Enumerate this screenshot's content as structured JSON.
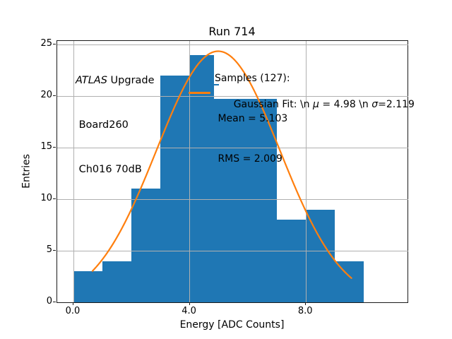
{
  "title": "Run 714",
  "xlabel": "Energy [ADC Counts]",
  "ylabel": "Entries",
  "annotations": {
    "detector": {
      "line1_italic": "ATLAS",
      "line1_rest": " Upgrade",
      "line2": " Board260",
      "line3": " Ch016 70dB"
    },
    "stats": {
      "line1": "Samples (127):",
      "line2": " Mean = 5.103",
      "line3": " RMS = 2.009"
    }
  },
  "legend": {
    "label_prefix": "Gaussian Fit: \\n ",
    "mu_symbol": "μ",
    "mu_value_text": " = 4.98 \\n ",
    "sigma_symbol": "σ",
    "sigma_value_text": "=2.119",
    "handle_color": "#ff7f0e"
  },
  "chart_data": {
    "type": "bar",
    "subtype": "histogram-with-gaussian-fit",
    "title": "Run 714",
    "xlabel": "Energy [ADC Counts]",
    "ylabel": "Entries",
    "bin_edges": [
      0,
      1,
      2,
      3,
      4,
      5,
      6,
      7,
      8,
      9,
      10
    ],
    "counts": [
      3,
      4,
      11,
      22,
      24,
      21,
      21,
      8,
      9,
      4
    ],
    "total_samples": 127,
    "mean": 5.103,
    "rms": 2.009,
    "bar_color": "#1f77b4",
    "fit": {
      "type": "gaussian",
      "mu": 4.98,
      "sigma": 2.119,
      "amplitude": 24.35,
      "x_start": 0.655,
      "x_end": 9.6,
      "color": "#ff7f0e"
    },
    "x_ticks": [
      0,
      4,
      8
    ],
    "x_tick_labels": [
      "0.0",
      "4.0",
      "8.0"
    ],
    "y_ticks": [
      0,
      5,
      10,
      15,
      20,
      25
    ],
    "y_tick_labels": [
      "0",
      "5",
      "10",
      "15",
      "20",
      "25"
    ],
    "xlim": [
      -0.56,
      11.5
    ],
    "ylim": [
      0,
      25.3
    ],
    "grid": true,
    "grid_color": "#b0b0b0",
    "legend_position": "upper right",
    "legend_frame": false
  }
}
